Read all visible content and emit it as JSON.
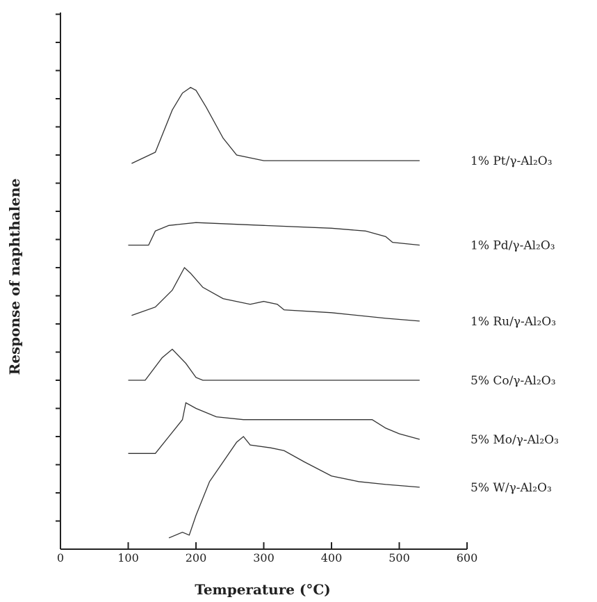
{
  "chart_data": {
    "type": "line",
    "xlabel": "Temperature (°C)",
    "ylabel": "Response of naphthalene",
    "xlim": [
      0,
      600
    ],
    "x_ticks": [
      0,
      100,
      200,
      300,
      400,
      500,
      600
    ],
    "grid": false,
    "legend": "labels at right end of each curve",
    "y_axis_numbered": false,
    "series": [
      {
        "name": "1% Pt/γ-Al₂O₃",
        "x": [
          105,
          140,
          165,
          180,
          192,
          200,
          215,
          240,
          260,
          300,
          400,
          500,
          530
        ],
        "y": [
          13.7,
          14.1,
          15.6,
          16.2,
          16.4,
          16.3,
          15.7,
          14.6,
          14.0,
          13.8,
          13.8,
          13.8,
          13.8
        ]
      },
      {
        "name": "1% Pd/γ-Al₂O₃",
        "x": [
          100,
          130,
          140,
          160,
          200,
          300,
          400,
          450,
          480,
          490,
          530
        ],
        "y": [
          10.8,
          10.8,
          11.3,
          11.5,
          11.6,
          11.5,
          11.4,
          11.3,
          11.1,
          10.9,
          10.8
        ]
      },
      {
        "name": "1% Ru/γ-Al₂O₃",
        "x": [
          105,
          140,
          165,
          183,
          192,
          210,
          240,
          280,
          300,
          320,
          330,
          400,
          480,
          530
        ],
        "y": [
          8.3,
          8.6,
          9.2,
          10.0,
          9.8,
          9.3,
          8.9,
          8.7,
          8.8,
          8.7,
          8.5,
          8.4,
          8.2,
          8.1
        ]
      },
      {
        "name": "5% Co/γ-Al₂O₃",
        "x": [
          100,
          125,
          150,
          165,
          185,
          200,
          210,
          300,
          400,
          530
        ],
        "y": [
          6.0,
          6.0,
          6.8,
          7.1,
          6.6,
          6.1,
          6.0,
          6.0,
          6.0,
          6.0
        ]
      },
      {
        "name": "5% Mo/γ-Al₂O₃",
        "x": [
          100,
          140,
          160,
          180,
          185,
          200,
          230,
          270,
          300,
          400,
          460,
          480,
          500,
          530
        ],
        "y": [
          3.4,
          3.4,
          4.0,
          4.6,
          5.2,
          5.0,
          4.7,
          4.6,
          4.6,
          4.6,
          4.6,
          4.3,
          4.1,
          3.9
        ]
      },
      {
        "name": "5% W/γ-Al₂O₃",
        "x": [
          160,
          180,
          190,
          200,
          220,
          240,
          260,
          270,
          280,
          310,
          330,
          360,
          400,
          440,
          480,
          530
        ],
        "y": [
          0.4,
          0.6,
          0.5,
          1.2,
          2.4,
          3.1,
          3.8,
          4.0,
          3.7,
          3.6,
          3.5,
          3.1,
          2.6,
          2.4,
          2.3,
          2.2
        ]
      }
    ]
  }
}
